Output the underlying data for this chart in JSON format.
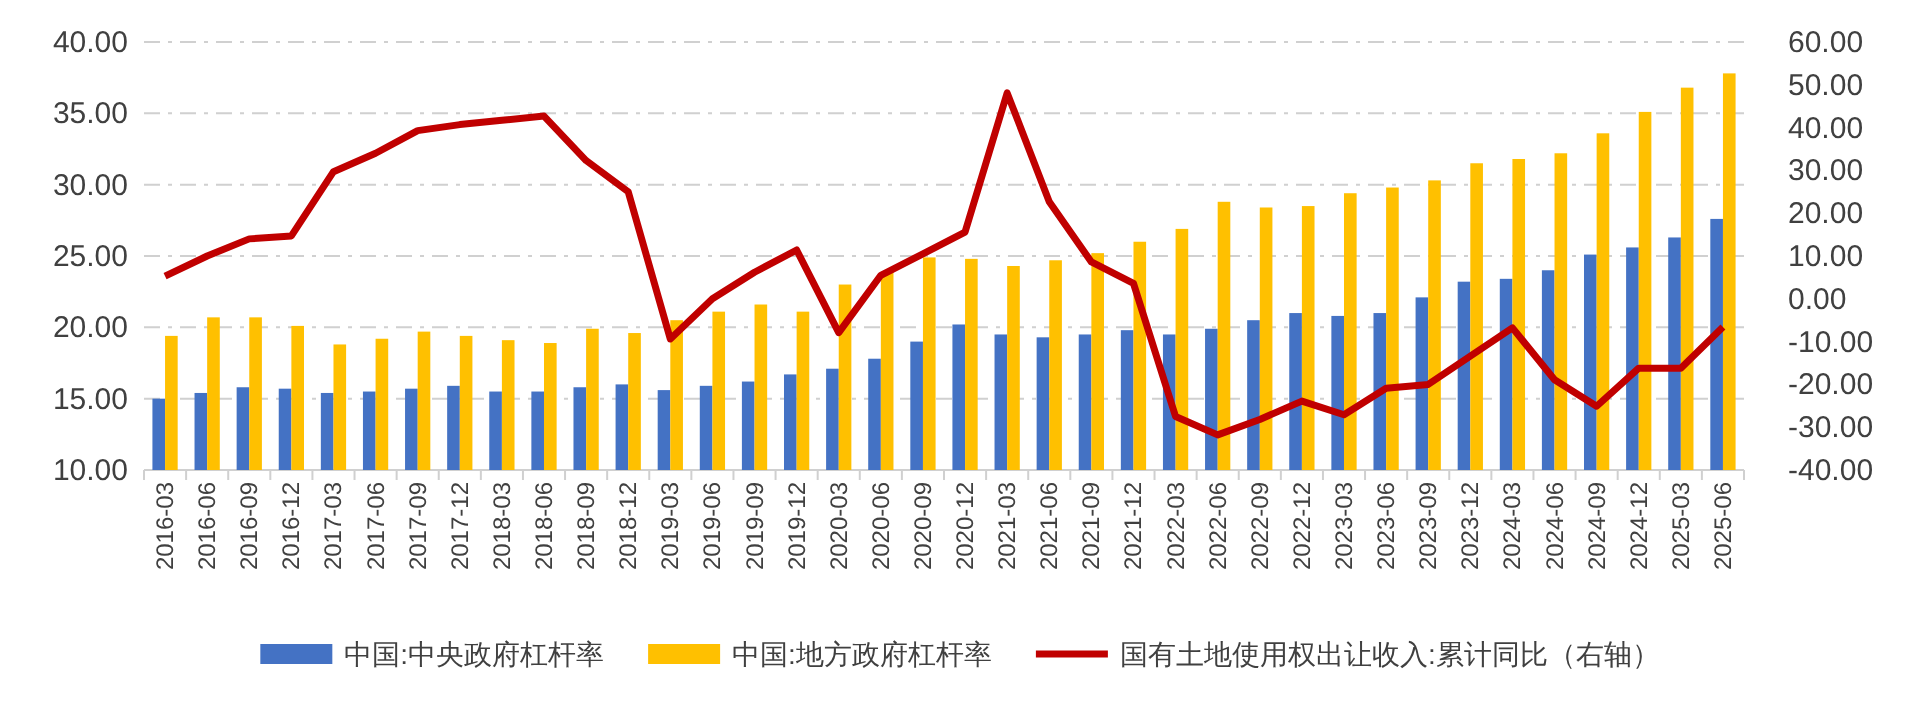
{
  "chart_data": {
    "type": "bar",
    "categories": [
      "2016-03",
      "2016-06",
      "2016-09",
      "2016-12",
      "2017-03",
      "2017-06",
      "2017-09",
      "2017-12",
      "2018-03",
      "2018-06",
      "2018-09",
      "2018-12",
      "2019-03",
      "2019-06",
      "2019-09",
      "2019-12",
      "2020-03",
      "2020-06",
      "2020-09",
      "2020-12",
      "2021-03",
      "2021-06",
      "2021-09",
      "2021-12",
      "2022-03",
      "2022-06",
      "2022-09",
      "2022-12",
      "2023-03",
      "2023-06",
      "2023-09",
      "2023-12",
      "2024-03",
      "2024-06",
      "2024-09",
      "2024-12",
      "2025-03",
      "2025-06"
    ],
    "series": [
      {
        "name": "中国:中央政府杠杆率",
        "color": "#4472c4",
        "values": [
          15.0,
          15.4,
          15.8,
          15.7,
          15.4,
          15.5,
          15.7,
          15.9,
          15.5,
          15.5,
          15.8,
          16.0,
          15.6,
          15.9,
          16.2,
          16.7,
          17.1,
          17.8,
          19.0,
          20.2,
          19.5,
          19.3,
          19.5,
          19.8,
          19.5,
          19.9,
          20.5,
          21.0,
          20.8,
          21.0,
          22.1,
          23.2,
          23.4,
          24.0,
          25.1,
          25.6,
          26.3,
          27.6
        ]
      },
      {
        "name": "中国:地方政府杠杆率",
        "color": "#ffc000",
        "values": [
          19.4,
          20.7,
          20.7,
          20.1,
          18.8,
          19.2,
          19.7,
          19.4,
          19.1,
          18.9,
          19.9,
          19.6,
          20.5,
          21.1,
          21.6,
          21.1,
          23.0,
          23.9,
          24.9,
          24.8,
          24.3,
          24.7,
          25.2,
          26.0,
          26.9,
          28.8,
          28.4,
          28.5,
          29.4,
          29.8,
          30.3,
          31.5,
          31.8,
          32.2,
          33.6,
          35.1,
          36.8,
          37.8
        ]
      },
      {
        "name": "国有土地使用权出让收入:累计同比（右轴）",
        "type": "line",
        "axis": "y2",
        "color": "#c00000",
        "values": [
          5.3,
          10.0,
          14.0,
          14.7,
          29.7,
          34.0,
          39.3,
          40.7,
          41.7,
          42.7,
          32.3,
          25.0,
          -9.4,
          0.0,
          6.2,
          11.4,
          -7.9,
          5.5,
          10.5,
          15.6,
          48.1,
          22.7,
          8.6,
          3.6,
          -27.5,
          -31.8,
          -28.2,
          -23.9,
          -27.1,
          -20.9,
          -20.0,
          -13.4,
          -6.8,
          -18.9,
          -25.1,
          -16.2,
          -16.2,
          -6.6
        ]
      }
    ],
    "ylim": [
      10,
      40
    ],
    "yticks": [
      {
        "value": 10,
        "label": "10.00"
      },
      {
        "value": 15,
        "label": "15.00"
      },
      {
        "value": 20,
        "label": "20.00"
      },
      {
        "value": 25,
        "label": "25.00"
      },
      {
        "value": 30,
        "label": "30.00"
      },
      {
        "value": 35,
        "label": "35.00"
      },
      {
        "value": 40,
        "label": "40.00"
      }
    ],
    "y2lim": [
      -40,
      60
    ],
    "y2ticks": [
      {
        "value": -40,
        "label": "-40.00"
      },
      {
        "value": -30,
        "label": "-30.00"
      },
      {
        "value": -20,
        "label": "-20.00"
      },
      {
        "value": -10,
        "label": "-10.00"
      },
      {
        "value": 0,
        "label": "0.00"
      },
      {
        "value": 10,
        "label": "10.00"
      },
      {
        "value": 20,
        "label": "20.00"
      },
      {
        "value": 30,
        "label": "30.00"
      },
      {
        "value": 40,
        "label": "40.00"
      },
      {
        "value": 50,
        "label": "50.00"
      },
      {
        "value": 60,
        "label": "60.00"
      }
    ],
    "grid": "y",
    "legend": "bottom"
  }
}
